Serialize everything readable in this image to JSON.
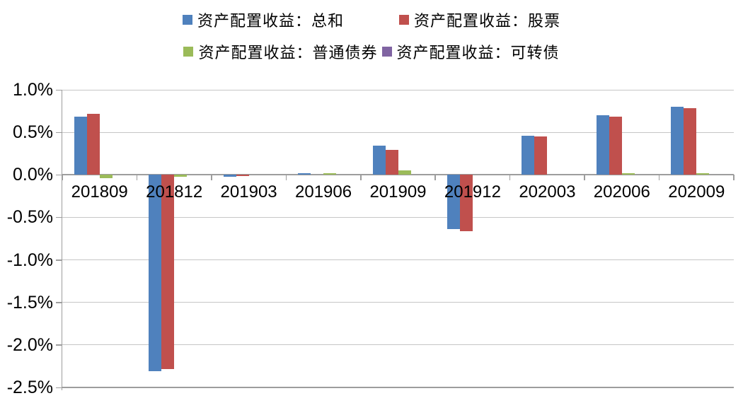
{
  "chart_data": {
    "type": "bar",
    "title": "",
    "xlabel": "",
    "ylabel": "",
    "categories": [
      "201809",
      "201812",
      "201903",
      "201906",
      "201909",
      "201912",
      "202003",
      "202006",
      "202009"
    ],
    "series": [
      {
        "name": "资产配置收益：总和",
        "color": "#4F81BD",
        "values": [
          0.68,
          -2.31,
          -0.02,
          0.01,
          0.34,
          -0.64,
          0.46,
          0.7,
          0.8
        ]
      },
      {
        "name": "资产配置收益：股票",
        "color": "#C0504D",
        "values": [
          0.72,
          -2.28,
          -0.01,
          0.0,
          0.29,
          -0.66,
          0.45,
          0.68,
          0.78
        ]
      },
      {
        "name": "资产配置收益：普通债券",
        "color": "#9BBB59",
        "values": [
          -0.04,
          -0.02,
          0.0,
          0.02,
          0.05,
          0.0,
          0.0,
          0.01,
          0.02
        ]
      },
      {
        "name": "资产配置收益：可转债",
        "color": "#8064A2",
        "values": [
          0.0,
          0.0,
          0.0,
          0.0,
          0.0,
          0.0,
          0.0,
          0.0,
          0.0
        ]
      }
    ],
    "ylim": [
      -2.5,
      1.0
    ],
    "ytick_step": 0.5,
    "ytick_labels": [
      "1.0%",
      "0.5%",
      "0.0%",
      "-0.5%",
      "-1.0%",
      "-1.5%",
      "-2.0%",
      "-2.5%"
    ],
    "grid": true,
    "legend_position": "top",
    "gridline_color": "#C6C6C6",
    "axis_color": "#9D9D9D",
    "text_color": "#000000"
  },
  "legend": {
    "rows": [
      [
        0,
        1
      ],
      [
        2,
        3
      ]
    ]
  }
}
